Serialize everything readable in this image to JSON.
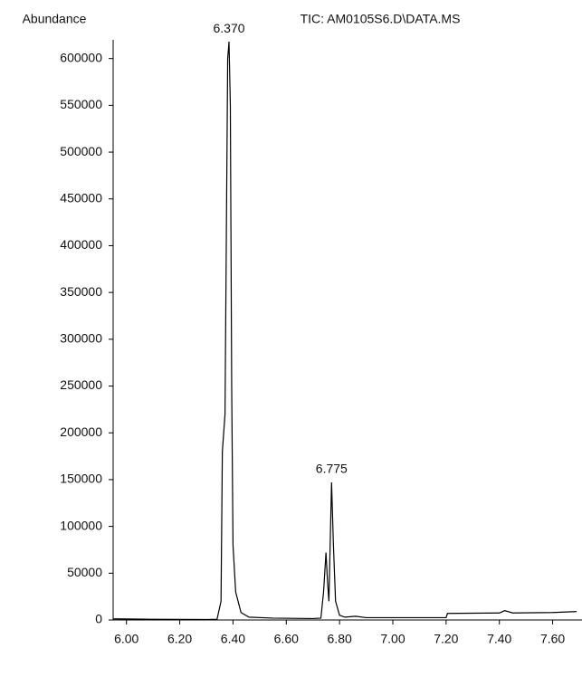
{
  "chart_data": {
    "type": "line",
    "title": "TIC: AM0105S6.D\\DATA.MS",
    "y_label": "Abundance",
    "annotations": [
      "6.370",
      "6.775"
    ],
    "x": [
      5.95,
      6.1,
      6.3,
      6.34,
      6.355,
      6.36,
      6.37,
      6.38,
      6.385,
      6.39,
      6.395,
      6.4,
      6.41,
      6.43,
      6.46,
      6.55,
      6.7,
      6.73,
      6.74,
      6.749,
      6.755,
      6.76,
      6.77,
      6.777,
      6.785,
      6.8,
      6.82,
      6.86,
      6.9,
      7.0,
      7.2,
      7.205,
      7.4,
      7.42,
      7.45,
      7.6,
      7.69
    ],
    "series": [
      {
        "name": "TIC",
        "color": "#000000",
        "values": [
          1200,
          700,
          500,
          800,
          20000,
          180000,
          220000,
          600000,
          618000,
          550000,
          250000,
          80000,
          30000,
          8000,
          3000,
          2000,
          1500,
          2000,
          30000,
          72000,
          40000,
          20000,
          147000,
          80000,
          20000,
          5000,
          3000,
          4000,
          2500,
          2500,
          2500,
          7000,
          7500,
          10000,
          7500,
          8000,
          9000
        ]
      }
    ],
    "xlim": [
      5.95,
      7.7
    ],
    "ylim": [
      0,
      620000
    ],
    "xticks": [
      {
        "value": 6.0,
        "label": "6.00"
      },
      {
        "value": 6.2,
        "label": "6.20"
      },
      {
        "value": 6.4,
        "label": "6.40"
      },
      {
        "value": 6.6,
        "label": "6.60"
      },
      {
        "value": 6.8,
        "label": "6.80"
      },
      {
        "value": 7.0,
        "label": "7.00"
      },
      {
        "value": 7.2,
        "label": "7.20"
      },
      {
        "value": 7.4,
        "label": "7.40"
      },
      {
        "value": 7.6,
        "label": "7.60"
      }
    ],
    "yticks": [
      0,
      50000,
      100000,
      150000,
      200000,
      250000,
      300000,
      350000,
      400000,
      450000,
      500000,
      550000,
      600000
    ]
  }
}
